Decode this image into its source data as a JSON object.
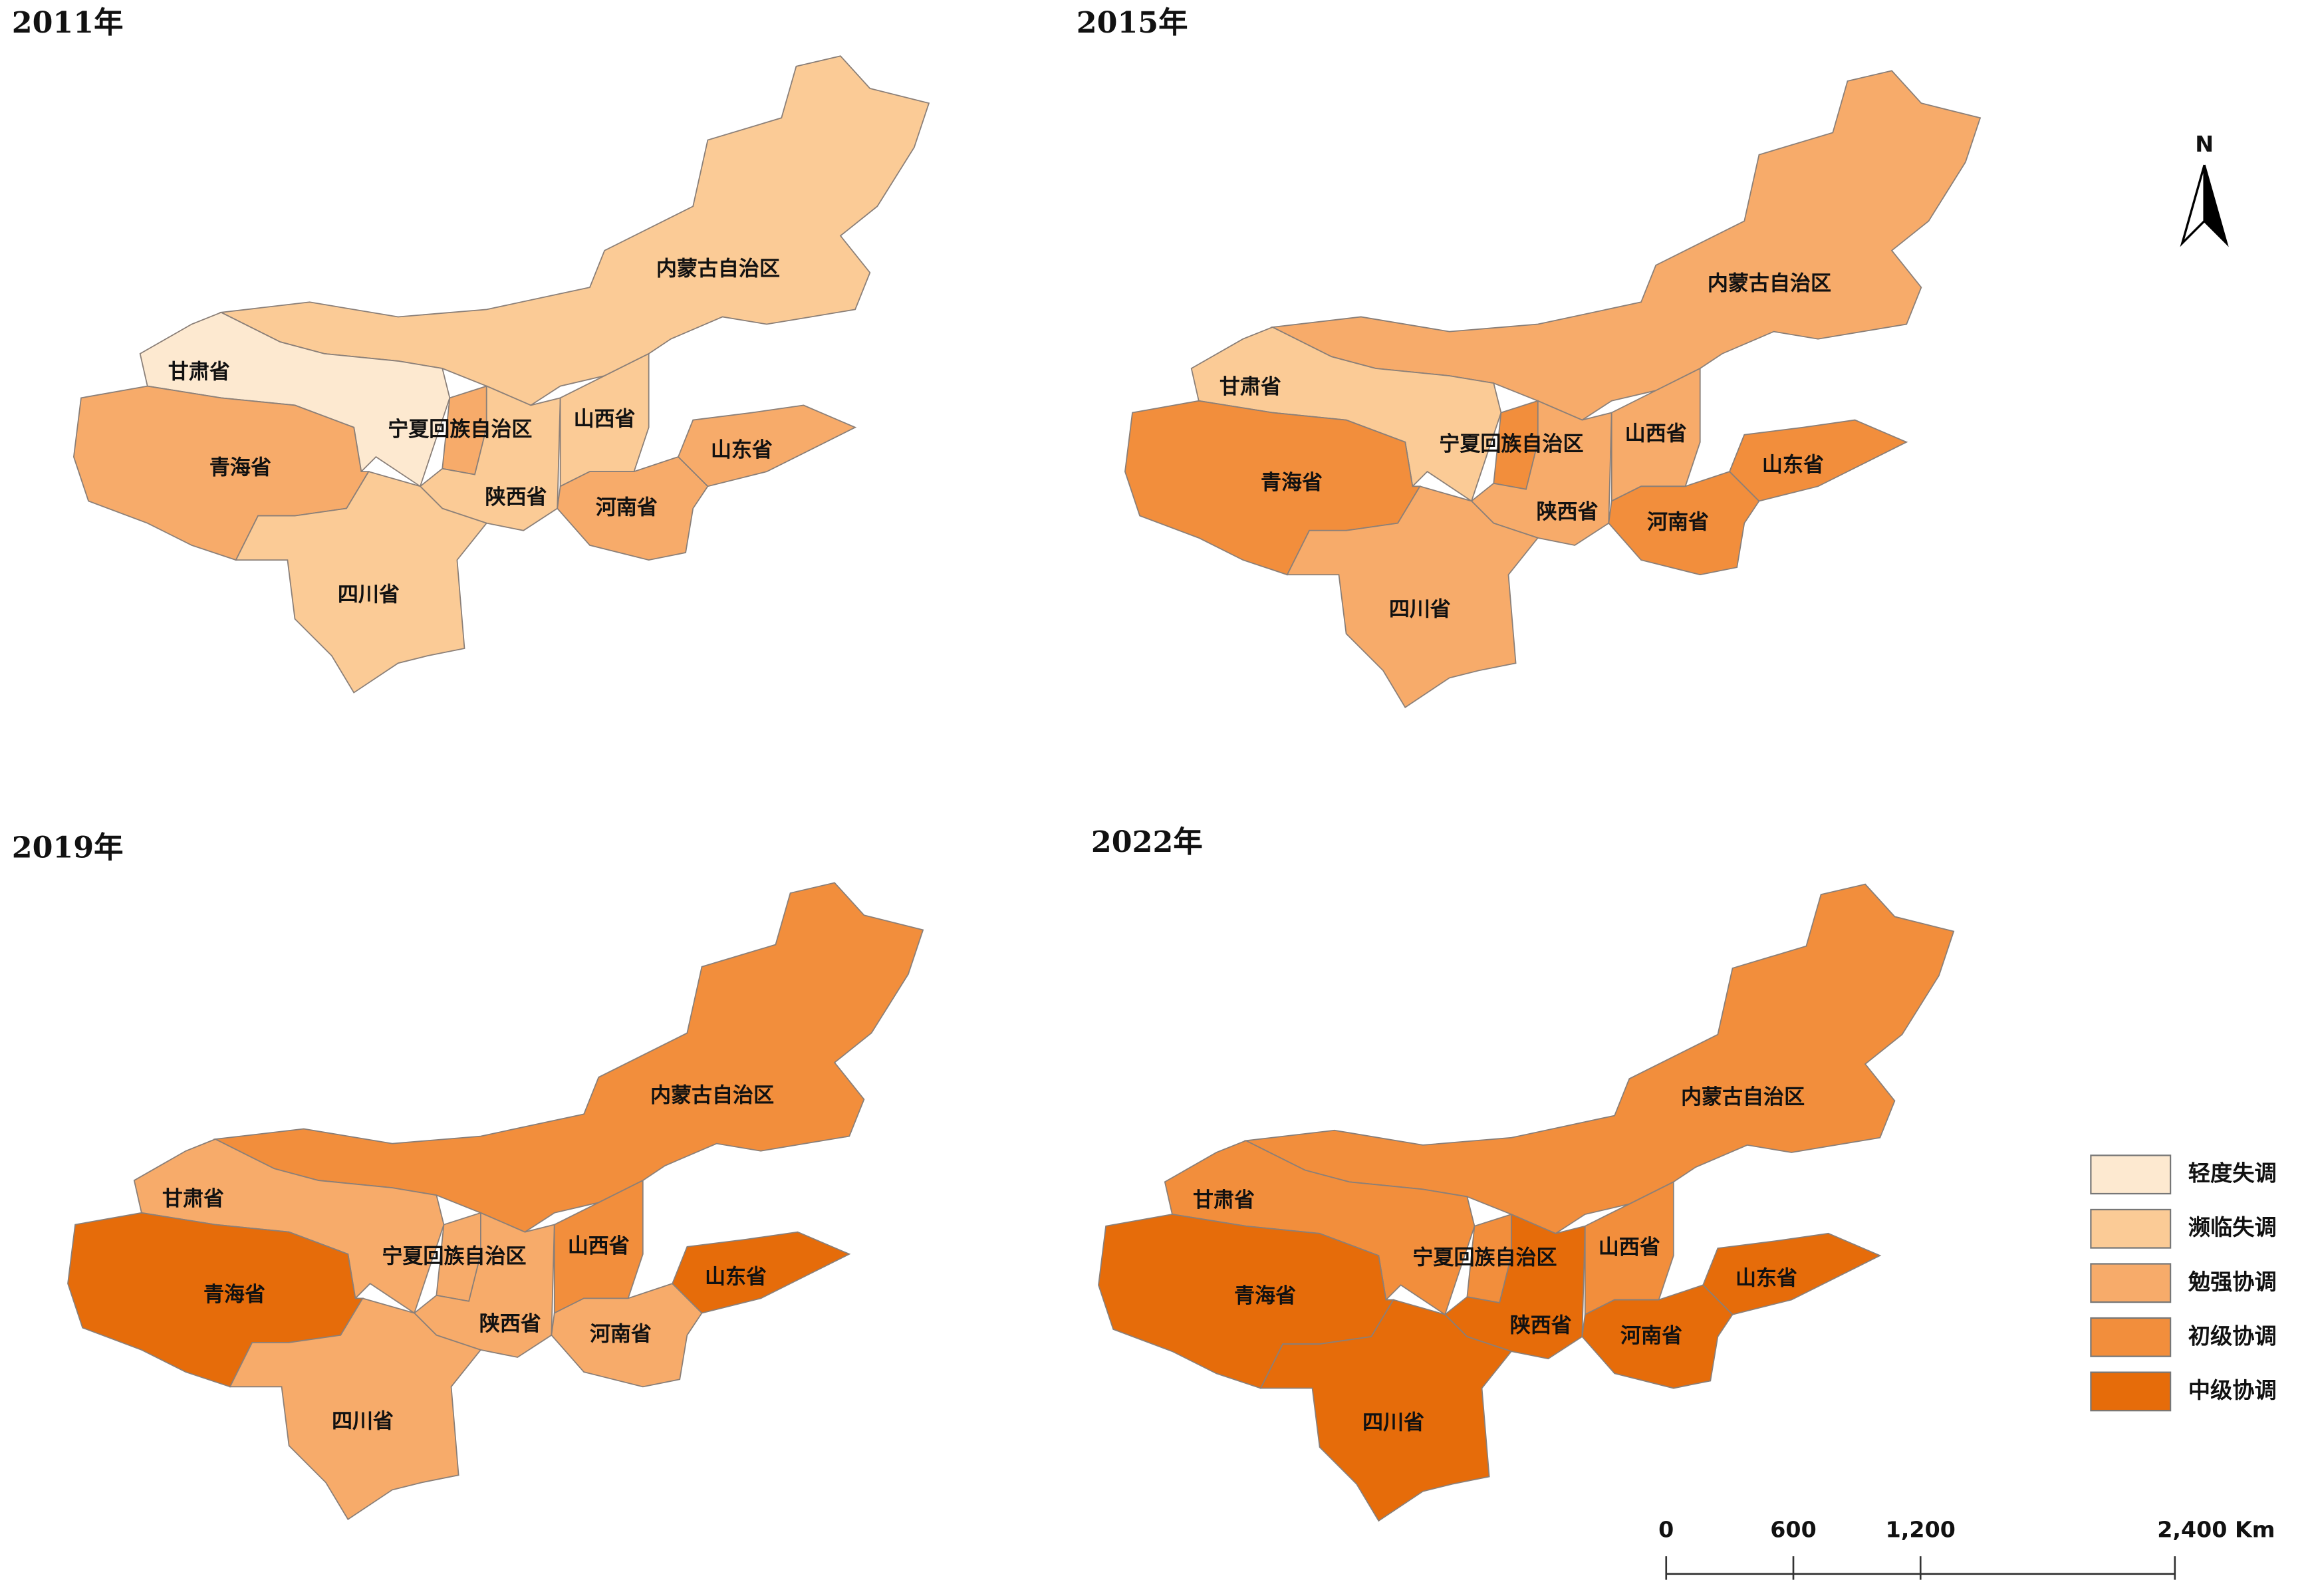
{
  "panels": [
    {
      "title": "2011年",
      "regions": [
        {
          "label": "内蒙古自治区",
          "class": "濒临失调"
        },
        {
          "label": "甘肃省",
          "class": "轻度失调"
        },
        {
          "label": "青海省",
          "class": "勉强协调"
        },
        {
          "label": "宁夏回族自治区",
          "class": "勉强协调"
        },
        {
          "label": "陕西省",
          "class": "濒临失调"
        },
        {
          "label": "山西省",
          "class": "濒临失调"
        },
        {
          "label": "河南省",
          "class": "勉强协调"
        },
        {
          "label": "山东省",
          "class": "勉强协调"
        },
        {
          "label": "四川省",
          "class": "濒临失调"
        }
      ]
    },
    {
      "title": "2015年",
      "regions": [
        {
          "label": "内蒙古自治区",
          "class": "勉强协调"
        },
        {
          "label": "甘肃省",
          "class": "濒临失调"
        },
        {
          "label": "青海省",
          "class": "初级协调"
        },
        {
          "label": "宁夏回族自治区",
          "class": "初级协调"
        },
        {
          "label": "陕西省",
          "class": "勉强协调"
        },
        {
          "label": "山西省",
          "class": "勉强协调"
        },
        {
          "label": "河南省",
          "class": "初级协调"
        },
        {
          "label": "山东省",
          "class": "初级协调"
        },
        {
          "label": "四川省",
          "class": "勉强协调"
        }
      ]
    },
    {
      "title": "2019年",
      "regions": [
        {
          "label": "内蒙古自治区",
          "class": "初级协调"
        },
        {
          "label": "甘肃省",
          "class": "勉强协调"
        },
        {
          "label": "青海省",
          "class": "中级协调"
        },
        {
          "label": "宁夏回族自治区",
          "class": "勉强协调"
        },
        {
          "label": "陕西省",
          "class": "勉强协调"
        },
        {
          "label": "山西省",
          "class": "初级协调"
        },
        {
          "label": "河南省",
          "class": "勉强协调"
        },
        {
          "label": "山东省",
          "class": "中级协调"
        },
        {
          "label": "四川省",
          "class": "勉强协调"
        }
      ]
    },
    {
      "title": "2022年",
      "regions": [
        {
          "label": "内蒙古自治区",
          "class": "初级协调"
        },
        {
          "label": "甘肃省",
          "class": "初级协调"
        },
        {
          "label": "青海省",
          "class": "中级协调"
        },
        {
          "label": "宁夏回族自治区",
          "class": "初级协调"
        },
        {
          "label": "陕西省",
          "class": "中级协调"
        },
        {
          "label": "山西省",
          "class": "初级协调"
        },
        {
          "label": "河南省",
          "class": "中级协调"
        },
        {
          "label": "山东省",
          "class": "中级协调"
        },
        {
          "label": "四川省",
          "class": "中级协调"
        }
      ]
    }
  ],
  "legend": {
    "items": [
      {
        "label": "轻度失调",
        "color": "#fde9d0"
      },
      {
        "label": "濒临失调",
        "color": "#fbcb96"
      },
      {
        "label": "勉强协调",
        "color": "#f7ab6a"
      },
      {
        "label": "初级协调",
        "color": "#f28e3c"
      },
      {
        "label": "中级协调",
        "color": "#e66c0a"
      }
    ]
  },
  "north_arrow": "N",
  "scale_bar": {
    "ticks": [
      0,
      600,
      {
        "value": 1200,
        "label": "1,200"
      },
      {
        "value": 2400,
        "label": "2,400 Km"
      }
    ]
  }
}
